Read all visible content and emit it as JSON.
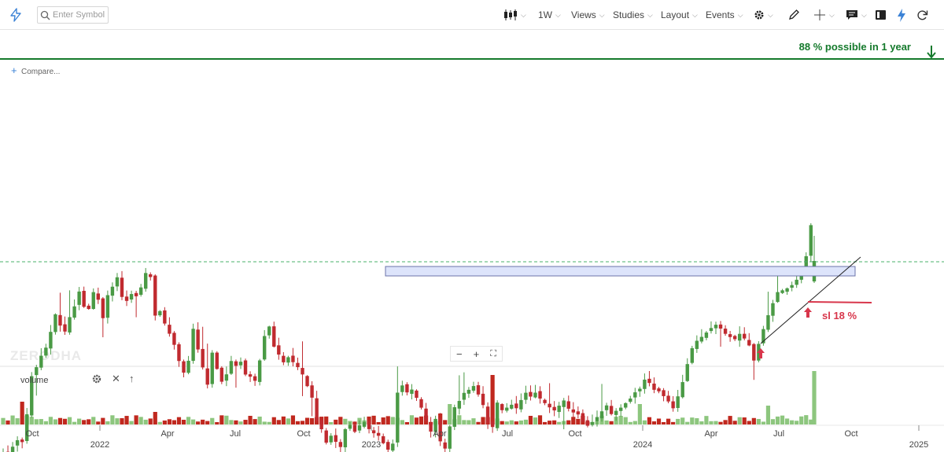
{
  "toolbar": {
    "search_placeholder": "Enter Symbol",
    "interval": "1W",
    "views": "Views",
    "studies": "Studies",
    "layout": "Layout",
    "events": "Events"
  },
  "chart": {
    "compare_label": "Compare...",
    "watermark": "ZERODHA",
    "volume_label": "volume",
    "annotations": {
      "target_text": "88 % possible in 1 year",
      "stop_loss_text": "sl 18 %"
    },
    "colors": {
      "up": "#4a9a45",
      "down": "#c02a2f",
      "vol_up": "#8dc67e",
      "vol_down": "#c0281e",
      "target_line": "#157a2c",
      "resistance_zone": "#dde4fb",
      "sl_line": "#d8364b",
      "accent": "#3b82d6"
    }
  },
  "chart_data": {
    "type": "candlestick",
    "timeframe": "1W",
    "x_ticks": [
      "Oct",
      "2022",
      "Apr",
      "Jul",
      "Oct",
      "2023",
      "Apr",
      "Jul",
      "Oct",
      "2024",
      "Apr",
      "Jul",
      "Oct",
      "2025"
    ],
    "resistance_zone_note": "horizontal base / breakout band (2023-2024)",
    "trendline_note": "rising support from mid-2024 low",
    "series": [
      {
        "name": "price",
        "trend": "downtrend from Oct 2021 into Feb 2023, sideways base through 2024, breakout Sep 2024"
      },
      {
        "name": "volume",
        "note": "spikes at Feb 2023 (down), Jun 2023 (up), Jan 2024 (up), Sep 2024 (up)"
      }
    ]
  }
}
